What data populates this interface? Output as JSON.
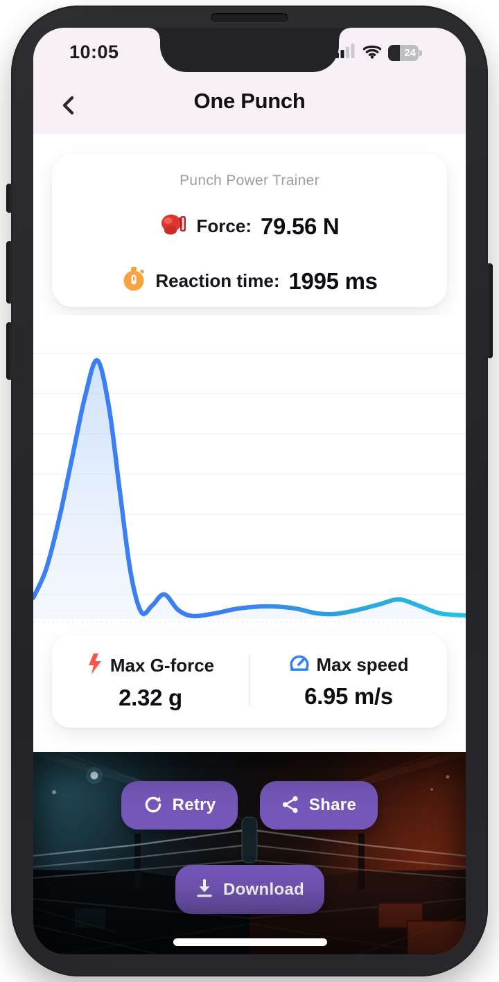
{
  "status_bar": {
    "time": "10:05",
    "battery_level": "24"
  },
  "header": {
    "title": "One Punch"
  },
  "trainer_card": {
    "title": "Punch Power Trainer",
    "force_label": "Force:",
    "force_value": "79.56 N",
    "reaction_label": "Reaction time:",
    "reaction_value": "1995 ms"
  },
  "stats_card": {
    "gforce_label": "Max G-force",
    "gforce_value": "2.32 g",
    "speed_label": "Max speed",
    "speed_value": "6.95 m/s"
  },
  "actions": {
    "retry_label": "Retry",
    "share_label": "Share",
    "download_label": "Download"
  },
  "colors": {
    "header_bg": "#f8f0f7",
    "accent_purple": "#7557b9",
    "line_blue": "#3b7ff2",
    "line_cyan": "#27c0e2",
    "bolt_red": "#f7564e",
    "gauge_blue": "#2f80f2",
    "glove_red": "#df352f",
    "timer_orange": "#f7a440"
  },
  "chart_data": {
    "type": "area",
    "title": "",
    "x_unit": "time",
    "y_unit": "g-force (g)",
    "ylim": [
      0,
      2.5
    ],
    "y_peak": 2.32,
    "grid": true,
    "grid_lines": 7,
    "legend_position": "none",
    "line_gradient": [
      "#3b7ff2",
      "#3b7ff2",
      "#2aa6dd",
      "#27c0e2"
    ],
    "fill_top": "rgba(178,206,248,0.60)",
    "fill_bottom": "rgba(228,238,252,0.40)",
    "points": [
      [
        0.0,
        0.19
      ],
      [
        0.03,
        0.45
      ],
      [
        0.06,
        0.9
      ],
      [
        0.09,
        1.45
      ],
      [
        0.12,
        2.0
      ],
      [
        0.148,
        2.32
      ],
      [
        0.175,
        1.9
      ],
      [
        0.2,
        1.15
      ],
      [
        0.225,
        0.42
      ],
      [
        0.25,
        0.06
      ],
      [
        0.275,
        0.12
      ],
      [
        0.303,
        0.22
      ],
      [
        0.335,
        0.08
      ],
      [
        0.37,
        0.025
      ],
      [
        0.42,
        0.05
      ],
      [
        0.47,
        0.09
      ],
      [
        0.52,
        0.11
      ],
      [
        0.565,
        0.11
      ],
      [
        0.61,
        0.09
      ],
      [
        0.655,
        0.05
      ],
      [
        0.7,
        0.045
      ],
      [
        0.75,
        0.08
      ],
      [
        0.8,
        0.13
      ],
      [
        0.845,
        0.175
      ],
      [
        0.89,
        0.12
      ],
      [
        0.94,
        0.05
      ],
      [
        1.0,
        0.03
      ]
    ]
  }
}
